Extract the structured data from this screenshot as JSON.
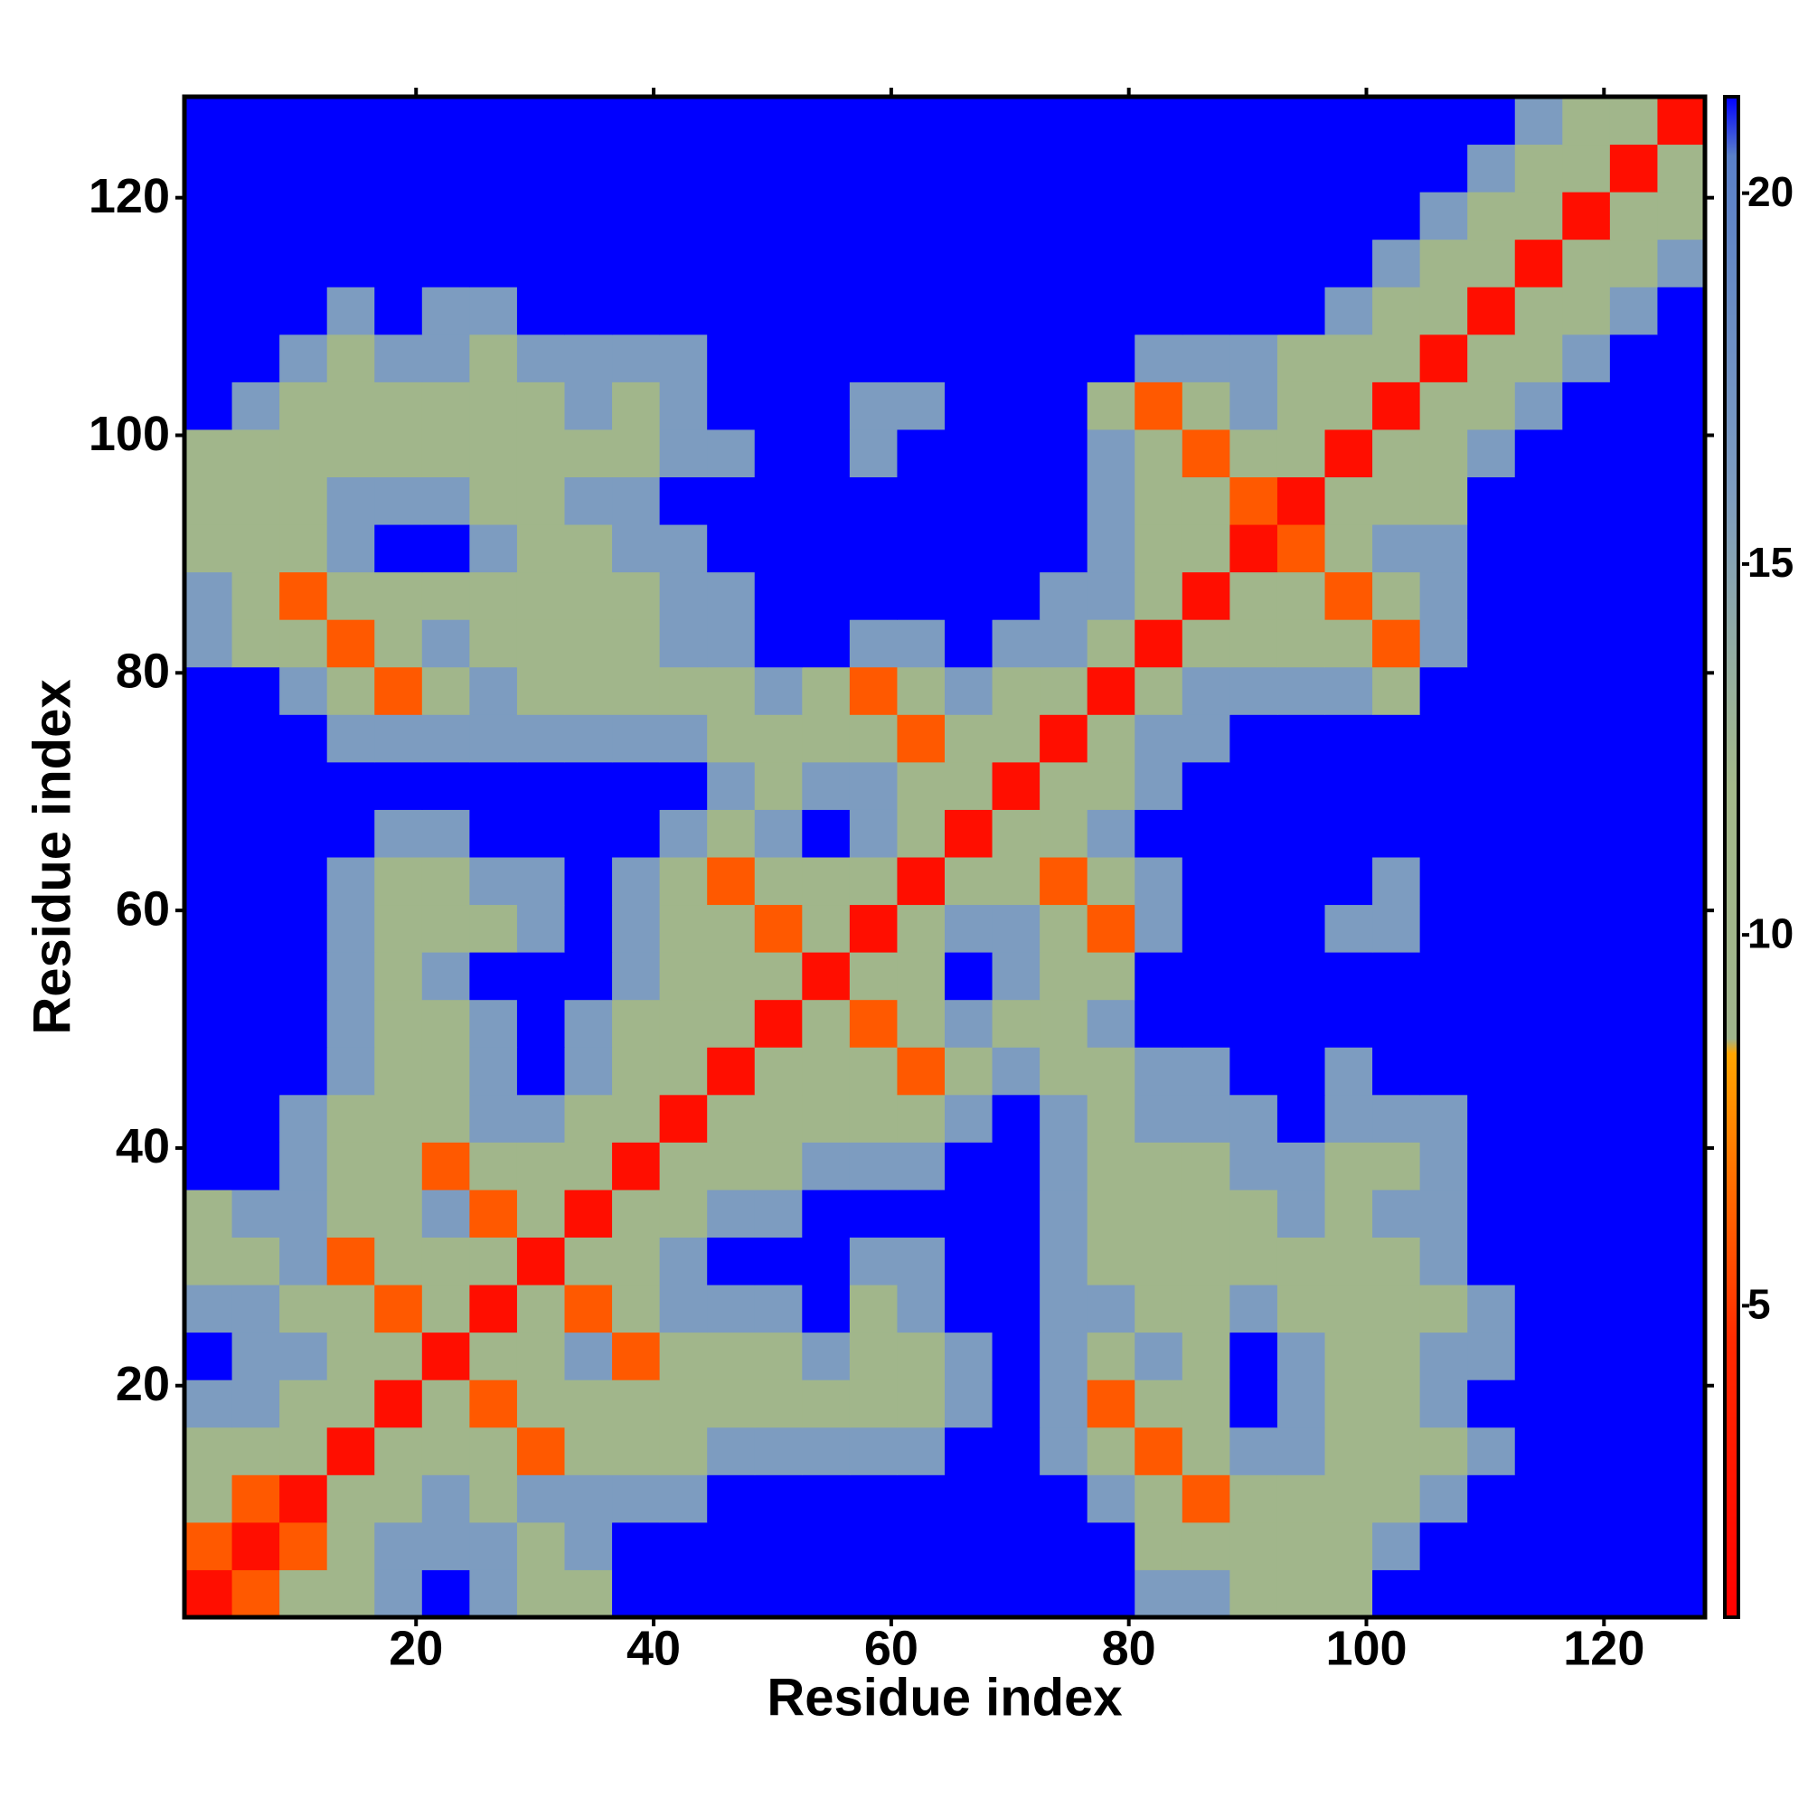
{
  "chart_data": {
    "type": "heatmap",
    "x_label": "Residue index",
    "y_label": "Residue index",
    "xlim": [
      0.5,
      128.5
    ],
    "ylim": [
      0.5,
      128.5
    ],
    "xticks": [
      20,
      40,
      60,
      80,
      100,
      120
    ],
    "yticks": [
      20,
      40,
      60,
      80,
      100,
      120
    ],
    "colorbar": {
      "lim": [
        0.8,
        21.3
      ],
      "ticks": [
        5,
        10,
        15,
        20
      ]
    },
    "colorscale": [
      [
        0.8,
        "#ff0000"
      ],
      [
        4.5,
        "#ff2a00"
      ],
      [
        8.4,
        "#ffa500"
      ],
      [
        8.6,
        "#9fb48c"
      ],
      [
        12,
        "#a4b98a"
      ],
      [
        16,
        "#7d9cc0"
      ],
      [
        20.5,
        "#5a80c8"
      ],
      [
        21.3,
        "#0000ff"
      ]
    ],
    "z": [
      [
        2,
        6,
        10,
        10,
        16,
        22,
        16,
        10,
        10,
        22,
        22,
        22,
        22,
        22,
        22,
        22,
        22,
        22,
        22,
        22,
        16,
        16,
        10,
        10,
        10,
        22,
        22,
        22,
        22,
        22,
        22,
        22
      ],
      [
        6,
        2,
        6,
        10,
        16,
        16,
        16,
        10,
        16,
        22,
        22,
        22,
        22,
        22,
        22,
        22,
        22,
        22,
        22,
        22,
        10,
        10,
        10,
        10,
        10,
        16,
        22,
        22,
        22,
        22,
        22,
        22
      ],
      [
        10,
        6,
        2,
        10,
        10,
        16,
        10,
        16,
        16,
        16,
        16,
        22,
        22,
        22,
        22,
        22,
        22,
        22,
        22,
        16,
        10,
        6,
        10,
        10,
        10,
        10,
        16,
        22,
        22,
        22,
        22,
        22
      ],
      [
        10,
        10,
        10,
        2,
        10,
        10,
        10,
        6,
        10,
        10,
        10,
        16,
        16,
        16,
        16,
        16,
        22,
        22,
        16,
        10,
        6,
        10,
        16,
        16,
        10,
        10,
        10,
        16,
        22,
        22,
        22,
        22
      ],
      [
        16,
        16,
        10,
        10,
        2,
        10,
        6,
        10,
        10,
        10,
        10,
        10,
        10,
        10,
        10,
        10,
        16,
        22,
        16,
        6,
        10,
        10,
        22,
        16,
        10,
        10,
        16,
        22,
        22,
        22,
        22,
        22
      ],
      [
        22,
        16,
        16,
        10,
        10,
        2,
        10,
        10,
        16,
        6,
        10,
        10,
        10,
        16,
        10,
        10,
        16,
        22,
        16,
        10,
        16,
        10,
        22,
        16,
        10,
        10,
        16,
        16,
        22,
        22,
        22,
        22
      ],
      [
        16,
        16,
        10,
        10,
        6,
        10,
        2,
        10,
        6,
        10,
        16,
        16,
        16,
        22,
        10,
        16,
        22,
        22,
        16,
        16,
        10,
        10,
        16,
        10,
        10,
        10,
        10,
        16,
        22,
        22,
        22,
        22
      ],
      [
        10,
        10,
        16,
        6,
        10,
        10,
        10,
        2,
        10,
        10,
        16,
        22,
        22,
        22,
        16,
        16,
        22,
        22,
        16,
        10,
        10,
        10,
        10,
        10,
        10,
        10,
        16,
        22,
        22,
        22,
        22,
        22
      ],
      [
        10,
        16,
        16,
        10,
        10,
        16,
        6,
        10,
        2,
        10,
        10,
        16,
        16,
        22,
        22,
        22,
        22,
        22,
        16,
        10,
        10,
        10,
        10,
        16,
        10,
        16,
        16,
        22,
        22,
        22,
        22,
        22
      ],
      [
        22,
        22,
        16,
        10,
        10,
        6,
        10,
        10,
        10,
        2,
        10,
        10,
        10,
        16,
        16,
        16,
        22,
        22,
        16,
        10,
        10,
        10,
        16,
        16,
        10,
        10,
        16,
        22,
        22,
        22,
        22,
        22
      ],
      [
        22,
        22,
        16,
        10,
        10,
        10,
        16,
        16,
        10,
        10,
        2,
        10,
        10,
        10,
        10,
        10,
        16,
        22,
        16,
        10,
        16,
        16,
        16,
        22,
        16,
        16,
        16,
        22,
        22,
        22,
        22,
        22
      ],
      [
        22,
        22,
        22,
        16,
        10,
        10,
        16,
        22,
        16,
        10,
        10,
        2,
        10,
        10,
        10,
        6,
        10,
        16,
        10,
        10,
        16,
        16,
        22,
        22,
        16,
        22,
        22,
        22,
        22,
        22,
        22,
        22
      ],
      [
        22,
        22,
        22,
        16,
        10,
        10,
        16,
        22,
        16,
        10,
        10,
        10,
        2,
        10,
        6,
        10,
        16,
        10,
        10,
        16,
        22,
        22,
        22,
        22,
        22,
        22,
        22,
        22,
        22,
        22,
        22,
        22
      ],
      [
        22,
        22,
        22,
        16,
        10,
        16,
        22,
        22,
        22,
        16,
        10,
        10,
        10,
        2,
        10,
        10,
        22,
        16,
        10,
        10,
        22,
        22,
        22,
        22,
        22,
        22,
        22,
        22,
        22,
        22,
        22,
        22
      ],
      [
        22,
        22,
        22,
        16,
        10,
        10,
        10,
        16,
        22,
        16,
        10,
        10,
        6,
        10,
        2,
        10,
        16,
        16,
        10,
        6,
        16,
        22,
        22,
        22,
        16,
        16,
        22,
        22,
        22,
        22,
        22,
        22
      ],
      [
        22,
        22,
        22,
        16,
        10,
        10,
        16,
        16,
        22,
        16,
        10,
        6,
        10,
        10,
        10,
        2,
        10,
        10,
        6,
        10,
        16,
        22,
        22,
        22,
        22,
        16,
        22,
        22,
        22,
        22,
        22,
        22
      ],
      [
        22,
        22,
        22,
        22,
        16,
        16,
        22,
        22,
        22,
        22,
        16,
        10,
        16,
        22,
        16,
        10,
        2,
        10,
        10,
        16,
        22,
        22,
        22,
        22,
        22,
        22,
        22,
        22,
        22,
        22,
        22,
        22
      ],
      [
        22,
        22,
        22,
        22,
        22,
        22,
        22,
        22,
        22,
        22,
        22,
        16,
        10,
        16,
        16,
        10,
        10,
        2,
        10,
        10,
        16,
        22,
        22,
        22,
        22,
        22,
        22,
        22,
        22,
        22,
        22,
        22
      ],
      [
        22,
        22,
        22,
        16,
        16,
        16,
        16,
        16,
        16,
        16,
        16,
        10,
        10,
        10,
        10,
        6,
        10,
        10,
        2,
        10,
        16,
        16,
        22,
        22,
        22,
        22,
        22,
        22,
        22,
        22,
        22,
        22
      ],
      [
        22,
        22,
        16,
        10,
        6,
        10,
        16,
        10,
        10,
        10,
        10,
        10,
        16,
        10,
        6,
        10,
        16,
        10,
        10,
        2,
        10,
        16,
        16,
        16,
        16,
        10,
        22,
        22,
        22,
        22,
        22,
        22
      ],
      [
        16,
        10,
        10,
        6,
        10,
        16,
        10,
        10,
        10,
        10,
        16,
        16,
        22,
        22,
        16,
        16,
        22,
        16,
        16,
        10,
        2,
        10,
        10,
        10,
        10,
        6,
        16,
        22,
        22,
        22,
        22,
        22
      ],
      [
        16,
        10,
        6,
        10,
        10,
        10,
        10,
        10,
        10,
        10,
        16,
        16,
        22,
        22,
        22,
        22,
        22,
        22,
        16,
        16,
        10,
        2,
        10,
        10,
        6,
        10,
        16,
        22,
        22,
        22,
        22,
        22
      ],
      [
        10,
        10,
        10,
        16,
        22,
        22,
        16,
        10,
        10,
        16,
        16,
        22,
        22,
        22,
        22,
        22,
        22,
        22,
        22,
        16,
        10,
        10,
        2,
        6,
        10,
        16,
        16,
        22,
        22,
        22,
        22,
        22
      ],
      [
        10,
        10,
        10,
        16,
        16,
        16,
        10,
        10,
        16,
        16,
        22,
        22,
        22,
        22,
        22,
        22,
        22,
        22,
        22,
        16,
        10,
        10,
        6,
        2,
        10,
        10,
        10,
        22,
        22,
        22,
        22,
        22
      ],
      [
        10,
        10,
        10,
        10,
        10,
        10,
        10,
        10,
        10,
        10,
        16,
        16,
        22,
        22,
        16,
        22,
        22,
        22,
        22,
        16,
        10,
        6,
        10,
        10,
        2,
        10,
        10,
        16,
        22,
        22,
        22,
        22
      ],
      [
        22,
        16,
        10,
        10,
        10,
        10,
        10,
        10,
        16,
        10,
        16,
        22,
        22,
        22,
        16,
        16,
        22,
        22,
        22,
        10,
        6,
        10,
        16,
        10,
        10,
        2,
        10,
        10,
        16,
        22,
        22,
        22
      ],
      [
        22,
        22,
        16,
        10,
        16,
        16,
        10,
        16,
        16,
        16,
        16,
        22,
        22,
        22,
        22,
        22,
        22,
        22,
        22,
        22,
        16,
        16,
        16,
        10,
        10,
        10,
        2,
        10,
        10,
        16,
        22,
        22
      ],
      [
        22,
        22,
        22,
        16,
        22,
        16,
        16,
        22,
        22,
        22,
        22,
        22,
        22,
        22,
        22,
        22,
        22,
        22,
        22,
        22,
        22,
        22,
        22,
        22,
        16,
        10,
        10,
        2,
        10,
        10,
        16,
        22
      ],
      [
        22,
        22,
        22,
        22,
        22,
        22,
        22,
        22,
        22,
        22,
        22,
        22,
        22,
        22,
        22,
        22,
        22,
        22,
        22,
        22,
        22,
        22,
        22,
        22,
        22,
        16,
        10,
        10,
        2,
        10,
        10,
        16
      ],
      [
        22,
        22,
        22,
        22,
        22,
        22,
        22,
        22,
        22,
        22,
        22,
        22,
        22,
        22,
        22,
        22,
        22,
        22,
        22,
        22,
        22,
        22,
        22,
        22,
        22,
        22,
        16,
        10,
        10,
        2,
        10,
        10
      ],
      [
        22,
        22,
        22,
        22,
        22,
        22,
        22,
        22,
        22,
        22,
        22,
        22,
        22,
        22,
        22,
        22,
        22,
        22,
        22,
        22,
        22,
        22,
        22,
        22,
        22,
        22,
        22,
        16,
        10,
        10,
        2,
        10
      ],
      [
        22,
        22,
        22,
        22,
        22,
        22,
        22,
        22,
        22,
        22,
        22,
        22,
        22,
        22,
        22,
        22,
        22,
        22,
        22,
        22,
        22,
        22,
        22,
        22,
        22,
        22,
        22,
        22,
        16,
        10,
        10,
        2
      ]
    ]
  }
}
